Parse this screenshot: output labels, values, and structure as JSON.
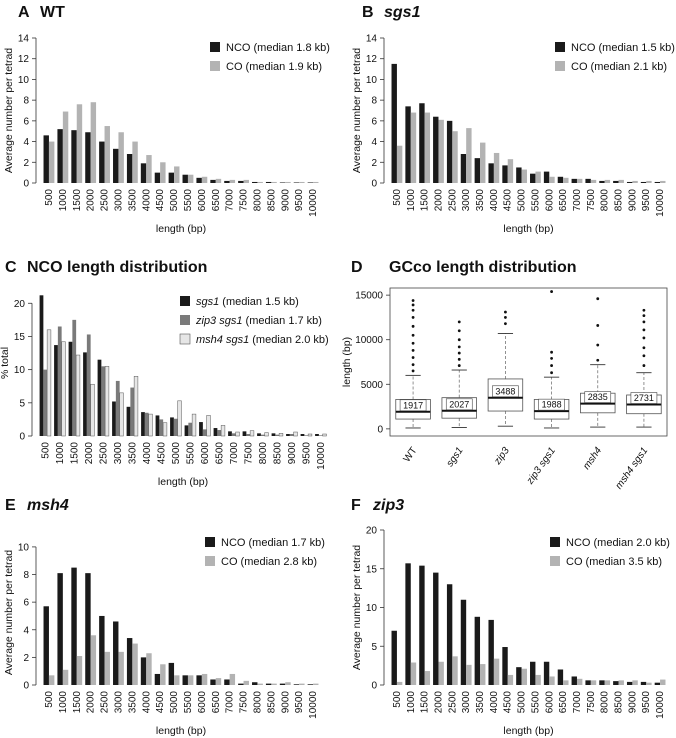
{
  "panels": [
    {
      "id": "A",
      "title": "WT",
      "title_italic": false,
      "label": "A",
      "ylabel": "Average number per tetrad",
      "xlabel": "length (bp)",
      "categories": [
        "500",
        "1000",
        "1500",
        "2000",
        "2500",
        "3000",
        "3500",
        "4000",
        "4500",
        "5000",
        "5500",
        "6000",
        "6500",
        "7000",
        "7500",
        "8000",
        "8500",
        "9000",
        "9500",
        "10000"
      ],
      "yticks": [
        0,
        2,
        4,
        6,
        8,
        10,
        12,
        14
      ],
      "ylim": [
        0,
        14
      ],
      "series": [
        {
          "name": "NCO (median 1.8 kb)",
          "color": "#1a1a1a",
          "values": [
            4.6,
            5.2,
            5.1,
            4.9,
            4.0,
            3.3,
            2.8,
            1.9,
            1.0,
            1.0,
            0.8,
            0.5,
            0.3,
            0.2,
            0.2,
            0.1,
            0.1,
            0.05,
            0.05,
            0.05
          ]
        },
        {
          "name": "CO (median 1.9 kb)",
          "color": "#b3b3b3",
          "values": [
            4.0,
            6.9,
            7.6,
            7.8,
            5.5,
            4.9,
            4.0,
            2.7,
            2.0,
            1.6,
            0.8,
            0.6,
            0.4,
            0.3,
            0.3,
            0.1,
            0.1,
            0.1,
            0.1,
            0.1
          ]
        }
      ]
    },
    {
      "id": "B",
      "title": "sgs1",
      "title_italic": true,
      "label": "B",
      "ylabel": "Average number per tetrad",
      "xlabel": "length (bp)",
      "categories": [
        "500",
        "1000",
        "1500",
        "2000",
        "2500",
        "3000",
        "3500",
        "4000",
        "4500",
        "5000",
        "5500",
        "6000",
        "6500",
        "7000",
        "7500",
        "8000",
        "8500",
        "9000",
        "9500",
        "10000"
      ],
      "yticks": [
        0,
        2,
        4,
        6,
        8,
        10,
        12,
        14
      ],
      "ylim": [
        0,
        14
      ],
      "series": [
        {
          "name": "NCO (median 1.5 kb)",
          "color": "#1a1a1a",
          "values": [
            11.5,
            7.4,
            7.7,
            6.4,
            6.0,
            2.8,
            2.4,
            1.9,
            1.7,
            1.5,
            0.9,
            1.1,
            0.6,
            0.4,
            0.4,
            0.2,
            0.2,
            0.1,
            0.1,
            0.1
          ]
        },
        {
          "name": "CO (median 2.1 kb)",
          "color": "#b3b3b3",
          "values": [
            3.6,
            6.8,
            6.8,
            6.1,
            5.0,
            5.3,
            3.9,
            2.9,
            2.3,
            1.3,
            1.1,
            0.6,
            0.5,
            0.4,
            0.3,
            0.3,
            0.3,
            0.2,
            0.2,
            0.2
          ]
        }
      ]
    },
    {
      "id": "C",
      "title": "NCO length distribution",
      "title_italic": false,
      "label": "C",
      "ylabel": "% total",
      "xlabel": "length (bp)",
      "categories": [
        "500",
        "1000",
        "1500",
        "2000",
        "2500",
        "3000",
        "3500",
        "4000",
        "4500",
        "5000",
        "5500",
        "6000",
        "6500",
        "7000",
        "7500",
        "8000",
        "8500",
        "9000",
        "9500",
        "10000"
      ],
      "yticks": [
        0,
        5,
        10,
        15,
        20
      ],
      "ylim": [
        0,
        22
      ],
      "series": [
        {
          "name": "sgs1",
          "suffix": " (median 1.5 kb)",
          "color": "#1a1a1a",
          "values": [
            21.2,
            13.7,
            14.2,
            12.6,
            11.5,
            5.2,
            4.4,
            3.6,
            3.1,
            2.8,
            1.6,
            2.1,
            1.2,
            0.7,
            0.7,
            0.4,
            0.4,
            0.3,
            0.3,
            0.3
          ]
        },
        {
          "name": "zip3 sgs1",
          "suffix": " (median 1.7 kb)",
          "color": "#7a7a7a",
          "values": [
            10.0,
            16.5,
            17.5,
            15.3,
            10.5,
            8.3,
            7.3,
            3.5,
            2.5,
            2.6,
            2.0,
            1.0,
            0.9,
            0.4,
            0.3,
            0.2,
            0.2,
            0.3,
            0.1,
            0.1
          ]
        },
        {
          "name": "msh4 sgs1",
          "suffix": " (median 2.0 kb)",
          "color": "#e6e6e6",
          "values": [
            16.0,
            14.2,
            12.2,
            7.8,
            10.5,
            6.5,
            9.0,
            3.3,
            2.0,
            5.3,
            3.3,
            3.1,
            1.6,
            0.6,
            0.8,
            0.5,
            0.4,
            0.6,
            0.3,
            0.3
          ]
        }
      ]
    },
    {
      "id": "E",
      "title": "msh4",
      "title_italic": true,
      "label": "E",
      "ylabel": "Average number per tetrad",
      "xlabel": "length (bp)",
      "categories": [
        "500",
        "1000",
        "1500",
        "2000",
        "2500",
        "3000",
        "3500",
        "4000",
        "4500",
        "5000",
        "5500",
        "6000",
        "6500",
        "7000",
        "7500",
        "8000",
        "8500",
        "9000",
        "9500",
        "10000"
      ],
      "yticks": [
        0,
        2,
        4,
        6,
        8,
        10
      ],
      "ylim": [
        0,
        10.5
      ],
      "series": [
        {
          "name": "NCO (median 1.7 kb)",
          "color": "#1a1a1a",
          "values": [
            5.7,
            8.1,
            8.5,
            8.1,
            5.0,
            4.6,
            3.4,
            2.0,
            0.8,
            1.6,
            0.7,
            0.7,
            0.4,
            0.4,
            0.1,
            0.2,
            0.1,
            0.1,
            0.05,
            0.05
          ]
        },
        {
          "name": "CO (median 2.8 kb)",
          "color": "#b3b3b3",
          "values": [
            0.7,
            1.1,
            2.1,
            3.6,
            2.4,
            2.4,
            3.0,
            2.3,
            1.5,
            0.7,
            0.7,
            0.8,
            0.5,
            0.8,
            0.3,
            0.1,
            0.1,
            0.2,
            0.1,
            0.1
          ]
        }
      ]
    },
    {
      "id": "F",
      "title": "zip3",
      "title_italic": true,
      "label": "F",
      "ylabel": "Average number per tetrad",
      "xlabel": "length (bp)",
      "categories": [
        "500",
        "1000",
        "1500",
        "2000",
        "2500",
        "3000",
        "3500",
        "4000",
        "4500",
        "5000",
        "5500",
        "6000",
        "6500",
        "7000",
        "7500",
        "8000",
        "8500",
        "9000",
        "9500",
        "10000"
      ],
      "yticks": [
        0,
        5,
        10,
        15,
        20
      ],
      "ylim": [
        0,
        20
      ],
      "series": [
        {
          "name": "NCO (median 2.0 kb)",
          "color": "#1a1a1a",
          "values": [
            7.0,
            15.7,
            15.4,
            14.5,
            13.0,
            11.0,
            8.8,
            8.4,
            4.9,
            2.3,
            3.0,
            3.0,
            2.0,
            1.1,
            0.6,
            0.6,
            0.5,
            0.4,
            0.4,
            0.3
          ]
        },
        {
          "name": "CO (median 3.5 kb)",
          "color": "#b3b3b3",
          "values": [
            0.4,
            2.9,
            1.8,
            3.0,
            3.7,
            2.6,
            2.7,
            3.4,
            1.3,
            2.1,
            1.3,
            1.1,
            0.6,
            0.8,
            0.6,
            0.6,
            0.6,
            0.6,
            0.3,
            0.7
          ]
        }
      ]
    }
  ],
  "boxplot": {
    "id": "D",
    "label": "D",
    "title": "GCco length distribution",
    "ylabel": "length (bp)",
    "yticks": [
      0,
      5000,
      10000,
      15000
    ],
    "ylim": [
      -800,
      15800
    ],
    "groups": [
      {
        "name": "WT",
        "median_label": "1917",
        "q1": 1100,
        "median": 1917,
        "q3": 3300,
        "lo": 100,
        "hi": 6000,
        "outliers": [
          6500,
          7200,
          8000,
          8800,
          9600,
          10500,
          11500,
          12500,
          13300,
          13900,
          14400
        ]
      },
      {
        "name": "sgs1",
        "median_label": "2027",
        "q1": 1200,
        "median": 2027,
        "q3": 3500,
        "lo": 150,
        "hi": 6600,
        "outliers": [
          7100,
          7800,
          8500,
          9200,
          10000,
          11000,
          12000
        ]
      },
      {
        "name": "zip3",
        "median_label": "3488",
        "q1": 2000,
        "median": 3488,
        "q3": 5600,
        "lo": 300,
        "hi": 10700,
        "outliers": [
          11800,
          12500,
          13100
        ]
      },
      {
        "name": "zip3 sgs1",
        "median_label": "1988",
        "q1": 1100,
        "median": 1988,
        "q3": 3300,
        "lo": 100,
        "hi": 5800,
        "outliers": [
          6300,
          7100,
          7900,
          8600,
          15400
        ]
      },
      {
        "name": "msh4",
        "median_label": "2835",
        "q1": 1800,
        "median": 2835,
        "q3": 4000,
        "lo": 200,
        "hi": 7200,
        "outliers": [
          7700,
          9400,
          11600,
          14600
        ]
      },
      {
        "name": "msh4 sgs1",
        "median_label": "2731",
        "q1": 1700,
        "median": 2731,
        "q3": 3800,
        "lo": 200,
        "hi": 6300,
        "outliers": [
          7100,
          8200,
          9100,
          10200,
          11100,
          12000,
          12700,
          13300
        ]
      }
    ]
  }
}
